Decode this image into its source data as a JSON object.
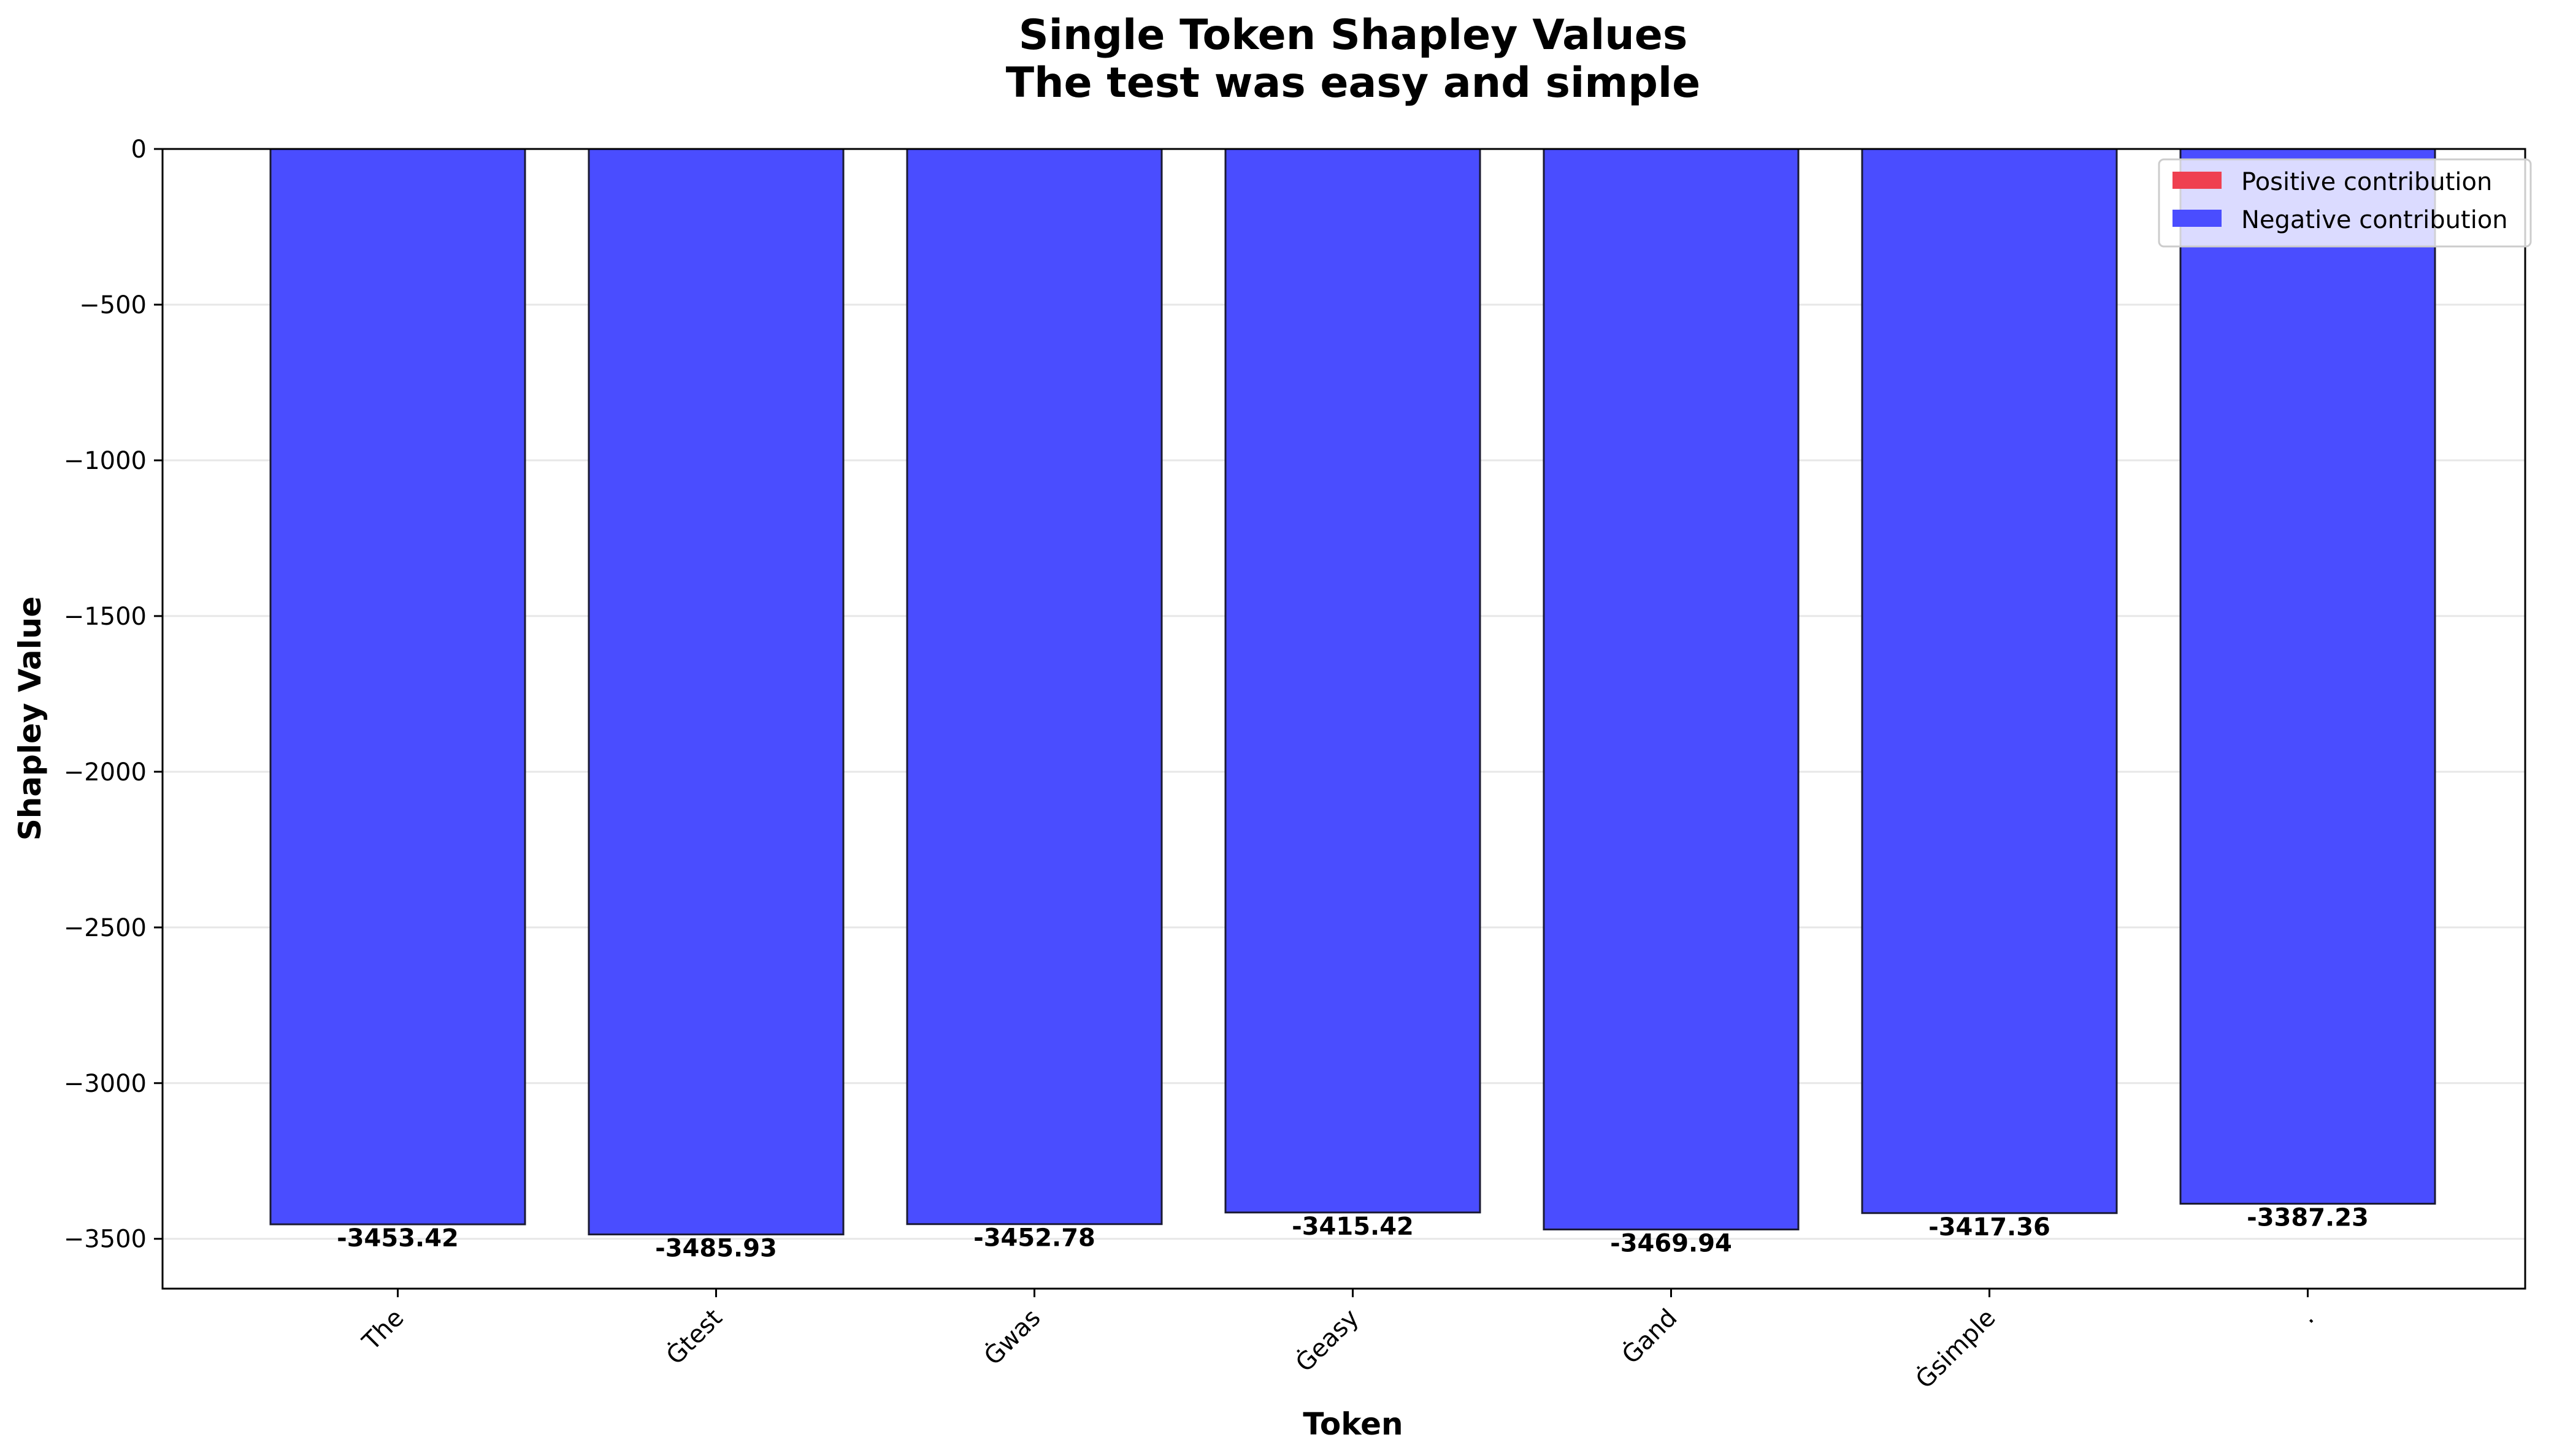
{
  "chart_data": {
    "type": "bar",
    "title": "Single Token Shapley Values",
    "subtitle": "The test was easy and simple",
    "xlabel": "Token",
    "ylabel": "Shapley Value",
    "categories": [
      "The",
      "Ġtest",
      "Ġwas",
      "Ġeasy",
      "Ġand",
      "Ġsimple",
      "."
    ],
    "values": [
      -3453.42,
      -3485.93,
      -3452.78,
      -3415.42,
      -3469.94,
      -3417.36,
      -3387.23
    ],
    "value_labels": [
      "-3453.42",
      "-3485.93",
      "-3452.78",
      "-3415.42",
      "-3469.94",
      "-3417.36",
      "-3387.23"
    ],
    "ylim": [
      -3660,
      0
    ],
    "yticks": [
      0,
      -500,
      -1000,
      -1500,
      -2000,
      -2500,
      -3000,
      -3500
    ],
    "ytick_labels": [
      "0",
      "−500",
      "−1000",
      "−1500",
      "−2000",
      "−2500",
      "−3000",
      "−3500"
    ],
    "grid": true,
    "legend_position": "top-right",
    "legend": [
      {
        "label": "Positive contribution",
        "color": "#ef4050"
      },
      {
        "label": "Negative contribution",
        "color": "#4a4dff"
      }
    ],
    "colors": {
      "negative": "#4a4dff",
      "positive": "#ef4050",
      "edge": "#1a1a33"
    }
  }
}
